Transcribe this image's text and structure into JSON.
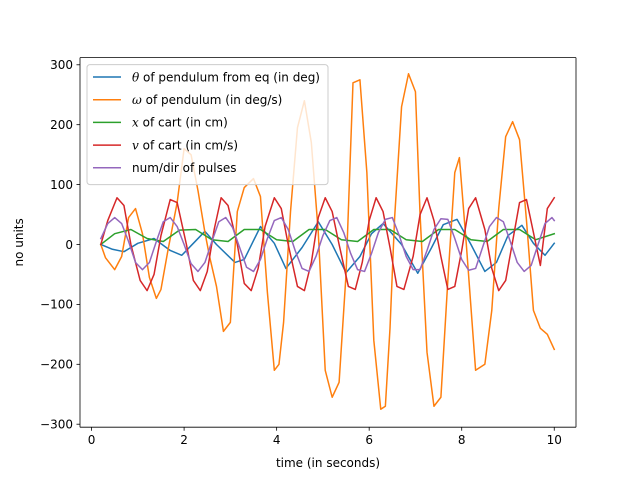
{
  "chart_data": {
    "type": "line",
    "title": "",
    "xlabel": "time (in seconds)",
    "ylabel": "no units",
    "xlim": [
      -0.25,
      10.47
    ],
    "ylim": [
      -305,
      312
    ],
    "xticks": [
      0,
      2,
      4,
      6,
      8,
      10
    ],
    "xtick_labels": [
      "0",
      "2",
      "4",
      "6",
      "8",
      "10"
    ],
    "yticks": [
      -300,
      -200,
      -100,
      0,
      100,
      200,
      300
    ],
    "ytick_labels": [
      "−300",
      "−200",
      "−100",
      "0",
      "100",
      "200",
      "300"
    ],
    "grid": false,
    "legend": "top-left",
    "series": [
      {
        "name": "θ of pendulum from eq (in deg)",
        "legend_parts": [
          {
            "text": "θ",
            "italic": true
          },
          {
            "text": " of pendulum from eq (in deg)",
            "italic": false
          }
        ],
        "color": "#1f77b4",
        "x": [
          0.2,
          0.45,
          0.7,
          1.0,
          1.35,
          1.7,
          1.95,
          2.2,
          2.45,
          2.7,
          3.1,
          3.3,
          3.65,
          3.95,
          4.2,
          4.55,
          4.9,
          5.2,
          5.5,
          5.8,
          6.05,
          6.3,
          6.7,
          7.05,
          7.35,
          7.6,
          7.9,
          8.2,
          8.5,
          8.75,
          9.0,
          9.3,
          9.55,
          9.8,
          10.0
        ],
        "y": [
          0,
          -8,
          -12,
          2,
          10,
          -10,
          -18,
          2,
          22,
          0,
          -30,
          -25,
          30,
          2,
          -40,
          -5,
          38,
          0,
          -47,
          -20,
          18,
          35,
          0,
          -48,
          -5,
          33,
          42,
          0,
          -45,
          -30,
          15,
          32,
          2,
          -18,
          2
        ]
      },
      {
        "name": "ω of pendulum (in deg/s)",
        "legend_parts": [
          {
            "text": "ω",
            "italic": true
          },
          {
            "text": " of pendulum (in deg/s)",
            "italic": false
          }
        ],
        "color": "#ff7f0e",
        "x": [
          0.2,
          0.3,
          0.5,
          0.65,
          0.8,
          0.95,
          1.1,
          1.25,
          1.4,
          1.5,
          1.65,
          1.85,
          2.0,
          2.15,
          2.3,
          2.45,
          2.55,
          2.7,
          2.85,
          3.0,
          3.15,
          3.3,
          3.5,
          3.65,
          3.8,
          3.95,
          4.05,
          4.15,
          4.3,
          4.45,
          4.6,
          4.75,
          4.9,
          5.05,
          5.2,
          5.35,
          5.5,
          5.65,
          5.8,
          5.95,
          6.1,
          6.25,
          6.35,
          6.45,
          6.55,
          6.7,
          6.85,
          7.0,
          7.1,
          7.25,
          7.4,
          7.55,
          7.7,
          7.85,
          7.95,
          8.1,
          8.3,
          8.5,
          8.65,
          8.8,
          8.95,
          9.1,
          9.25,
          9.4,
          9.55,
          9.7,
          9.85,
          10.0
        ],
        "y": [
          0,
          -22,
          -42,
          -20,
          45,
          60,
          18,
          -55,
          -90,
          -75,
          -10,
          70,
          160,
          150,
          90,
          20,
          -20,
          -70,
          -145,
          -130,
          55,
          95,
          110,
          80,
          -80,
          -210,
          -200,
          -130,
          55,
          195,
          240,
          170,
          20,
          -210,
          -255,
          -230,
          -50,
          270,
          275,
          120,
          -160,
          -275,
          -270,
          -140,
          45,
          230,
          285,
          255,
          50,
          -180,
          -270,
          -255,
          -60,
          120,
          145,
          0,
          -210,
          -200,
          -110,
          60,
          180,
          205,
          175,
          40,
          -110,
          -140,
          -150,
          -175
        ]
      },
      {
        "name": "x of cart (in cm)",
        "legend_parts": [
          {
            "text": "x",
            "italic": true
          },
          {
            "text": " of cart (in cm)",
            "italic": false
          }
        ],
        "color": "#2ca02c",
        "x": [
          0.2,
          0.5,
          0.85,
          1.2,
          1.55,
          1.9,
          2.25,
          2.6,
          2.95,
          3.3,
          3.65,
          4.0,
          4.35,
          4.7,
          5.05,
          5.4,
          5.75,
          6.1,
          6.45,
          6.8,
          7.15,
          7.5,
          7.85,
          8.2,
          8.55,
          8.9,
          9.25,
          9.6,
          10.0
        ],
        "y": [
          0,
          18,
          25,
          10,
          5,
          24,
          25,
          8,
          5,
          25,
          25,
          8,
          5,
          25,
          25,
          8,
          5,
          25,
          25,
          8,
          5,
          25,
          25,
          8,
          5,
          25,
          25,
          8,
          18
        ]
      },
      {
        "name": "v of cart  (in cm/s)",
        "legend_parts": [
          {
            "text": "v",
            "italic": true
          },
          {
            "text": " of cart  (in cm/s)",
            "italic": false
          }
        ],
        "color": "#d62728",
        "x": [
          0.2,
          0.35,
          0.55,
          0.7,
          0.85,
          1.05,
          1.2,
          1.35,
          1.5,
          1.7,
          1.85,
          2.05,
          2.2,
          2.35,
          2.5,
          2.65,
          2.8,
          2.95,
          3.15,
          3.3,
          3.45,
          3.6,
          3.75,
          3.95,
          4.1,
          4.25,
          4.45,
          4.6,
          4.75,
          4.9,
          5.05,
          5.2,
          5.35,
          5.55,
          5.7,
          5.85,
          6.0,
          6.15,
          6.3,
          6.45,
          6.6,
          6.75,
          6.95,
          7.1,
          7.25,
          7.4,
          7.55,
          7.7,
          7.85,
          8.0,
          8.15,
          8.3,
          8.5,
          8.65,
          8.8,
          8.95,
          9.1,
          9.25,
          9.4,
          9.55,
          9.7,
          9.85,
          10.0
        ],
        "y": [
          0,
          40,
          78,
          65,
          0,
          -60,
          -77,
          -50,
          15,
          75,
          70,
          0,
          -60,
          -77,
          -45,
          25,
          78,
          65,
          0,
          -65,
          -77,
          -40,
          30,
          78,
          60,
          0,
          -70,
          -77,
          -30,
          45,
          78,
          55,
          0,
          -70,
          -75,
          -30,
          40,
          78,
          55,
          -5,
          -70,
          -75,
          -20,
          50,
          78,
          40,
          -20,
          -75,
          -70,
          -10,
          60,
          78,
          25,
          -40,
          -77,
          -60,
          5,
          70,
          75,
          20,
          -35,
          60,
          78
        ]
      },
      {
        "name": "num/dir of pulses",
        "legend_parts": [
          {
            "text": "num/dir of pulses",
            "italic": false
          }
        ],
        "color": "#9467bd",
        "x": [
          0.2,
          0.35,
          0.5,
          0.65,
          0.8,
          0.95,
          1.1,
          1.25,
          1.4,
          1.55,
          1.7,
          1.85,
          2.0,
          2.15,
          2.3,
          2.45,
          2.6,
          2.75,
          2.9,
          3.05,
          3.2,
          3.35,
          3.5,
          3.65,
          3.8,
          3.95,
          4.1,
          4.25,
          4.4,
          4.55,
          4.7,
          4.85,
          5.0,
          5.15,
          5.3,
          5.45,
          5.6,
          5.75,
          5.9,
          6.05,
          6.2,
          6.35,
          6.5,
          6.65,
          6.8,
          6.95,
          7.1,
          7.25,
          7.4,
          7.55,
          7.7,
          7.85,
          8.0,
          8.15,
          8.3,
          8.45,
          8.6,
          8.75,
          8.9,
          9.05,
          9.2,
          9.35,
          9.5,
          9.65,
          9.8,
          9.95,
          10.0
        ],
        "y": [
          10,
          35,
          45,
          35,
          5,
          -30,
          -42,
          -30,
          5,
          38,
          45,
          30,
          0,
          -32,
          -45,
          -30,
          5,
          38,
          45,
          28,
          -5,
          -38,
          -45,
          -25,
          10,
          40,
          45,
          25,
          -10,
          -40,
          -45,
          -20,
          15,
          40,
          45,
          20,
          -15,
          -42,
          -45,
          -15,
          20,
          42,
          45,
          15,
          -20,
          -42,
          -42,
          -10,
          25,
          43,
          42,
          10,
          -25,
          -43,
          -40,
          -5,
          30,
          45,
          38,
          5,
          -30,
          -45,
          -35,
          0,
          35,
          45,
          40
        ]
      }
    ]
  }
}
